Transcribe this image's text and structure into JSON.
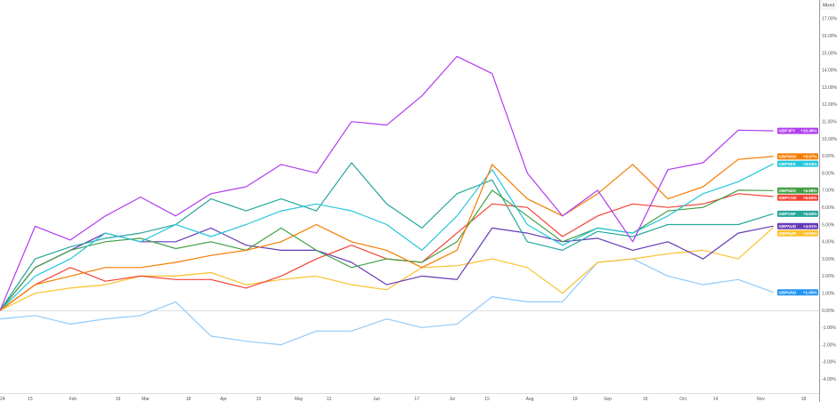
{
  "chart_data": {
    "type": "line",
    "title": "",
    "xlabel": "",
    "ylabel": "",
    "scale_mode": "Mixed",
    "y_unit": "%",
    "ylim": [
      -4.5,
      17.5
    ],
    "y_ticks": [
      "17.00%",
      "16.00%",
      "15.00%",
      "14.00%",
      "13.00%",
      "12.00%",
      "11.00%",
      "10.00%",
      "9.00%",
      "8.00%",
      "7.00%",
      "6.00%",
      "5.00%",
      "4.00%",
      "3.00%",
      "2.00%",
      "1.00%",
      "0.00%",
      "-1.00%",
      "-2.00%",
      "-3.00%",
      "-4.00%"
    ],
    "x_ticks": [
      {
        "label": "24",
        "date": "Jan 1"
      },
      {
        "label": "15",
        "date": "Jan 15"
      },
      {
        "label": "Feb",
        "date": "Feb 1"
      },
      {
        "label": "19",
        "date": "Feb 19"
      },
      {
        "label": "Mar",
        "date": "Mar 1"
      },
      {
        "label": "18",
        "date": "Mar 18"
      },
      {
        "label": "Apr",
        "date": "Apr 1"
      },
      {
        "label": "15",
        "date": "Apr 15"
      },
      {
        "label": "May",
        "date": "May 1"
      },
      {
        "label": "13",
        "date": "May 13"
      },
      {
        "label": "Jun",
        "date": "Jun 1"
      },
      {
        "label": "17",
        "date": "Jun 17"
      },
      {
        "label": "Jul",
        "date": "Jul 1"
      },
      {
        "label": "15",
        "date": "Jul 15"
      },
      {
        "label": "Aug",
        "date": "Aug 1"
      },
      {
        "label": "19",
        "date": "Aug 19"
      },
      {
        "label": "Sep",
        "date": "Sep 1"
      },
      {
        "label": "16",
        "date": "Sep 16"
      },
      {
        "label": "Oct",
        "date": "Oct 1"
      },
      {
        "label": "14",
        "date": "Oct 14"
      },
      {
        "label": "Nov",
        "date": "Nov 1"
      },
      {
        "label": "18",
        "date": "Nov 18"
      }
    ],
    "grid": false,
    "zero_line": true,
    "x": [
      "Jan 3",
      "Jan 17",
      "Jan 31",
      "Feb 14",
      "Feb 28",
      "Mar 13",
      "Mar 27",
      "Apr 10",
      "Apr 24",
      "May 8",
      "May 22",
      "Jun 5",
      "Jun 19",
      "Jul 3",
      "Jul 17",
      "Jul 31",
      "Aug 14",
      "Aug 28",
      "Sep 11",
      "Sep 25",
      "Oct 9",
      "Oct 23",
      "Nov 6"
    ],
    "series": [
      {
        "name": "GBPJPY",
        "last_label": "+10.46%",
        "color": "#b23cf0",
        "values": [
          0,
          4.9,
          4.1,
          5.5,
          6.6,
          5.5,
          6.8,
          7.2,
          8.5,
          8.0,
          11.0,
          10.8,
          12.5,
          14.8,
          13.8,
          8.0,
          5.5,
          7.0,
          4.0,
          8.2,
          8.6,
          10.5,
          10.46
        ]
      },
      {
        "name": "GBPNOK",
        "last_label": "+8.97%",
        "color": "#f57c00",
        "values": [
          0,
          1.5,
          2.0,
          2.5,
          2.5,
          2.8,
          3.2,
          3.5,
          4.0,
          5.0,
          4.0,
          3.5,
          2.5,
          3.5,
          8.5,
          6.5,
          5.5,
          6.8,
          8.5,
          6.5,
          7.2,
          8.8,
          8.97
        ]
      },
      {
        "name": "GBPSEK",
        "last_label": "+8.54%",
        "color": "#26c6da",
        "values": [
          0,
          2.0,
          3.0,
          4.5,
          4.0,
          5.0,
          4.3,
          5.0,
          5.8,
          6.2,
          5.8,
          5.0,
          3.5,
          5.5,
          8.2,
          5.0,
          3.8,
          4.8,
          4.5,
          5.5,
          6.8,
          7.5,
          8.54
        ]
      },
      {
        "name": "GBPNZD",
        "last_label": "+6.98%",
        "color": "#43a047",
        "values": [
          0,
          2.5,
          3.5,
          4.0,
          4.2,
          3.6,
          4.0,
          3.5,
          4.8,
          3.5,
          2.5,
          3.0,
          2.8,
          4.0,
          7.0,
          5.5,
          4.0,
          4.8,
          4.5,
          5.8,
          6.0,
          7.0,
          6.98
        ]
      },
      {
        "name": "GBPCAD",
        "last_label": "+6.63%",
        "color": "#f44336",
        "values": [
          0,
          1.5,
          2.5,
          1.7,
          2.0,
          1.8,
          1.8,
          1.3,
          2.0,
          3.0,
          3.8,
          3.0,
          2.8,
          4.5,
          6.2,
          6.0,
          4.3,
          5.5,
          6.2,
          6.0,
          6.2,
          6.8,
          6.63
        ]
      },
      {
        "name": "GBPCHF",
        "last_label": "+5.63%",
        "color": "#26a69a",
        "values": [
          0,
          3.0,
          3.7,
          4.2,
          4.5,
          5.0,
          6.5,
          5.8,
          6.5,
          5.8,
          8.6,
          6.2,
          4.8,
          6.8,
          7.6,
          4.0,
          3.5,
          4.6,
          4.3,
          5.0,
          5.0,
          5.0,
          5.63
        ]
      },
      {
        "name": "GBPAUD",
        "last_label": "+4.91%",
        "color": "#673ab7",
        "values": [
          0,
          2.5,
          3.5,
          4.5,
          4.0,
          4.0,
          4.8,
          3.8,
          3.5,
          3.5,
          2.8,
          1.5,
          2.0,
          1.8,
          4.8,
          4.5,
          4.0,
          4.2,
          3.5,
          4.0,
          3.0,
          4.5,
          4.91
        ]
      },
      {
        "name": "GBPEUR",
        "last_label": "+4.84%",
        "color": "#fbc02d",
        "values": [
          0,
          1.0,
          1.3,
          1.5,
          2.0,
          2.0,
          2.2,
          1.5,
          1.8,
          2.0,
          1.5,
          1.2,
          2.5,
          2.6,
          3.0,
          2.5,
          1.0,
          2.8,
          3.0,
          3.3,
          3.5,
          3.0,
          4.84
        ]
      },
      {
        "name": "GBPUSD",
        "last_label": "+1.05%",
        "color": "#2196f3",
        "line_color": "#90caf9",
        "values": [
          -0.5,
          -0.3,
          -0.8,
          -0.5,
          -0.3,
          0.5,
          -1.5,
          -1.8,
          -2.0,
          -1.2,
          -1.2,
          -0.5,
          -1.0,
          -0.8,
          0.8,
          0.5,
          0.5,
          2.8,
          3.0,
          2.0,
          1.5,
          1.8,
          1.05
        ]
      }
    ]
  }
}
